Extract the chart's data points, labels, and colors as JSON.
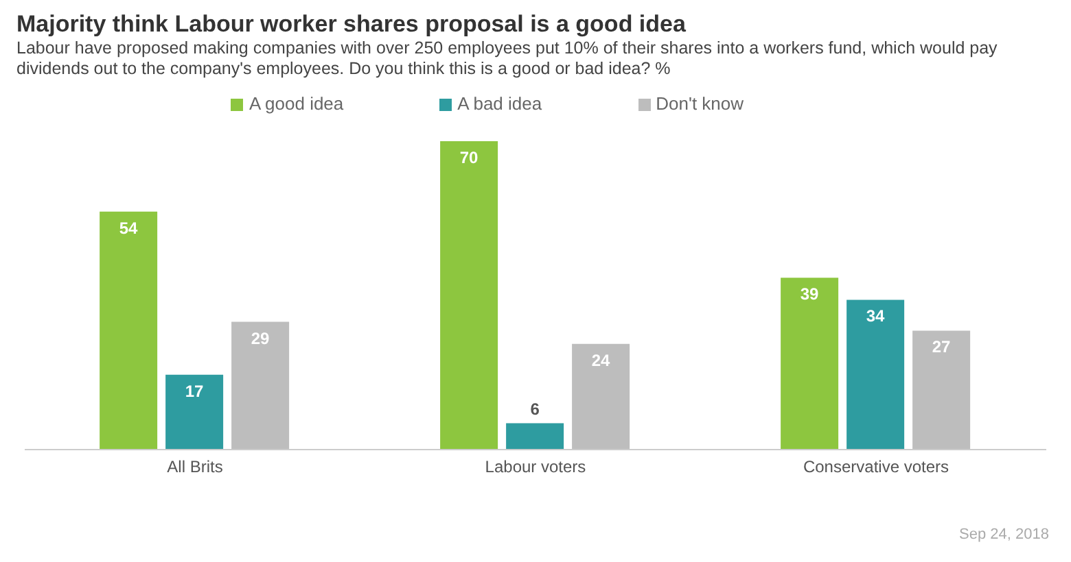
{
  "chart_data": {
    "type": "bar",
    "title": "Majority think Labour worker shares proposal is a good idea",
    "subtitle": "Labour have proposed making companies with over 250 employees put 10% of their shares into a workers fund, which would pay dividends out to the company's employees. Do you think this is a good or bad idea? %",
    "categories": [
      "All Brits",
      "Labour voters",
      "Conservative voters"
    ],
    "series": [
      {
        "name": "A good idea",
        "color": "#8dc63f",
        "values": [
          54,
          70,
          39
        ]
      },
      {
        "name": "A bad idea",
        "color": "#2e9ca0",
        "values": [
          17,
          6,
          34
        ]
      },
      {
        "name": "Don't know",
        "color": "#bdbdbd",
        "values": [
          29,
          24,
          27
        ]
      }
    ],
    "data_labels": true,
    "legend": "top",
    "grid": false,
    "annotations": [
      "Sep 24, 2018"
    ]
  }
}
